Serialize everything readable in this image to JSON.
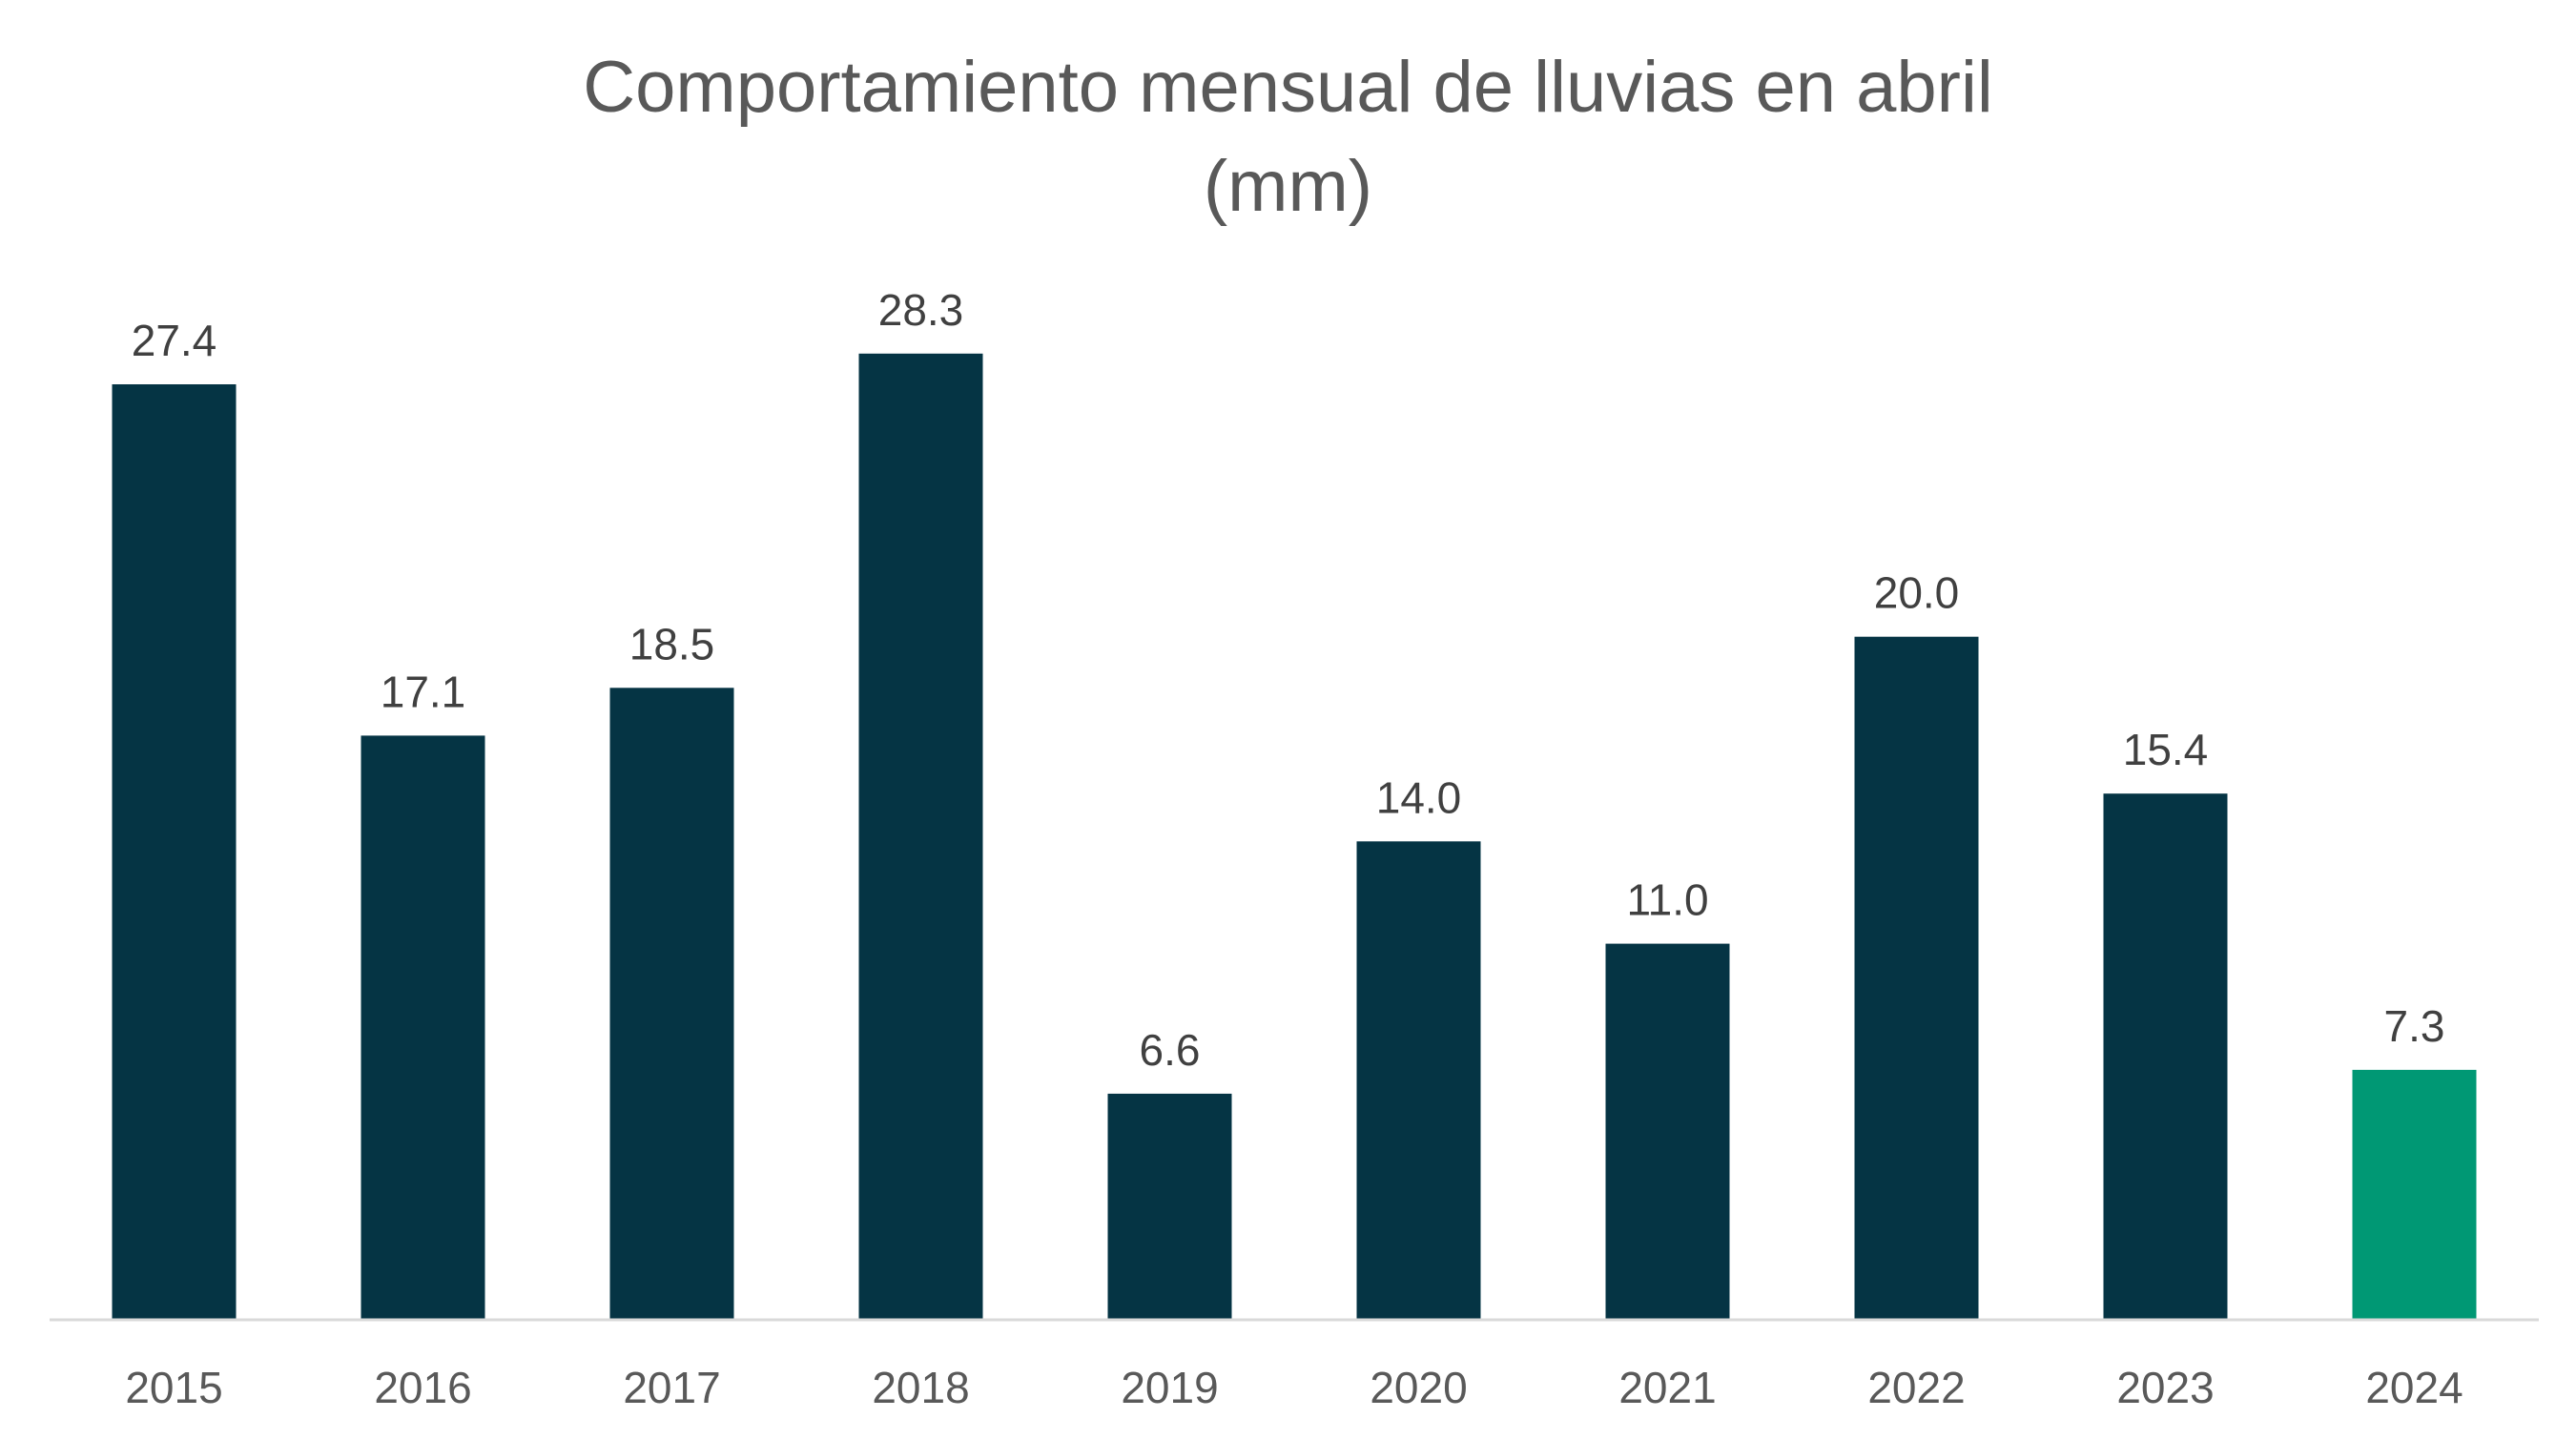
{
  "chart_data": {
    "type": "bar",
    "title_line1": "Comportamiento mensual de lluvias en abril",
    "title_line2": "(mm)",
    "categories": [
      "2015",
      "2016",
      "2017",
      "2018",
      "2019",
      "2020",
      "2021",
      "2022",
      "2023",
      "2024"
    ],
    "values": [
      27.4,
      17.1,
      18.5,
      28.3,
      6.6,
      14.0,
      11.0,
      20.0,
      15.4,
      7.3
    ],
    "data_labels": [
      "27.4",
      "17.1",
      "18.5",
      "28.3",
      "6.6",
      "14.0",
      "11.0",
      "20.0",
      "15.4",
      "7.3"
    ],
    "ylim": [
      0,
      30
    ],
    "grid": false,
    "legend": "none",
    "colors": {
      "bar": "#053444",
      "highlight": "#009874",
      "axis": "#d9d9d9"
    },
    "highlight_category": "2024"
  }
}
